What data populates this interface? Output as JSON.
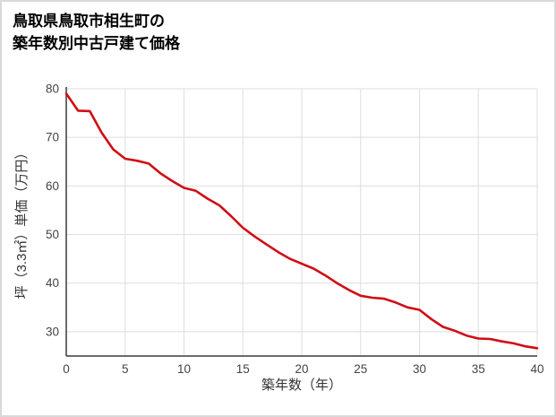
{
  "title": {
    "line1": "鳥取県鳥取市相生町の",
    "line2": "築年数別中古戸建て価格"
  },
  "chart_data": {
    "type": "line",
    "title": "鳥取県鳥取市相生町の築年数別中古戸建て価格",
    "xlabel": "築年数（年）",
    "ylabel": "坪（3.3㎡）単価（万円）",
    "x": [
      0,
      1,
      2,
      3,
      4,
      5,
      6,
      7,
      8,
      9,
      10,
      11,
      12,
      13,
      14,
      15,
      16,
      17,
      18,
      19,
      20,
      21,
      22,
      23,
      24,
      25,
      26,
      27,
      28,
      29,
      30,
      31,
      32,
      33,
      34,
      35,
      36,
      37,
      38,
      39,
      40
    ],
    "values": [
      79,
      75.5,
      75.4,
      71,
      67.5,
      65.6,
      65.2,
      64.6,
      62.6,
      61,
      59.6,
      59,
      57.4,
      56,
      53.8,
      51.4,
      49.6,
      48,
      46.4,
      45,
      44,
      43,
      41.6,
      40,
      38.6,
      37.4,
      37,
      36.8,
      36,
      35,
      34.5,
      32.6,
      31,
      30.2,
      29.2,
      28.6,
      28.5,
      28,
      27.6,
      27,
      26.6
    ],
    "xlim": [
      0,
      40
    ],
    "ylim": [
      25,
      80
    ],
    "x_ticks": [
      0,
      5,
      10,
      15,
      20,
      25,
      30,
      35,
      40
    ],
    "y_ticks": [
      30,
      40,
      50,
      60,
      70,
      80
    ],
    "grid": true,
    "legend": "none",
    "line_color": "#d00d15",
    "grid_color": "#dedede",
    "axis_color": "#3a3a3a",
    "tick_label_color": "#444444"
  }
}
